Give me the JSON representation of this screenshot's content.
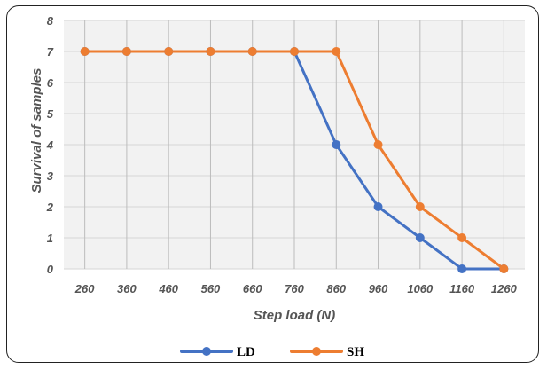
{
  "chart_data": {
    "type": "line",
    "title": "",
    "xlabel": "Step load (N)",
    "ylabel": "Survival of samples",
    "categories": [
      "260",
      "360",
      "460",
      "560",
      "660",
      "760",
      "860",
      "960",
      "1060",
      "1160",
      "1260"
    ],
    "ylim": [
      0,
      8
    ],
    "yticks": [
      "0",
      "1",
      "2",
      "3",
      "4",
      "5",
      "6",
      "7",
      "8"
    ],
    "grid": true,
    "legend_position": "bottom",
    "series": [
      {
        "name": "LD",
        "color": "#4472C4",
        "values": [
          7,
          7,
          7,
          7,
          7,
          7,
          4,
          2,
          1,
          0,
          0
        ]
      },
      {
        "name": "SH",
        "color": "#ED7D31",
        "values": [
          7,
          7,
          7,
          7,
          7,
          7,
          7,
          4,
          2,
          1,
          0
        ]
      }
    ]
  }
}
